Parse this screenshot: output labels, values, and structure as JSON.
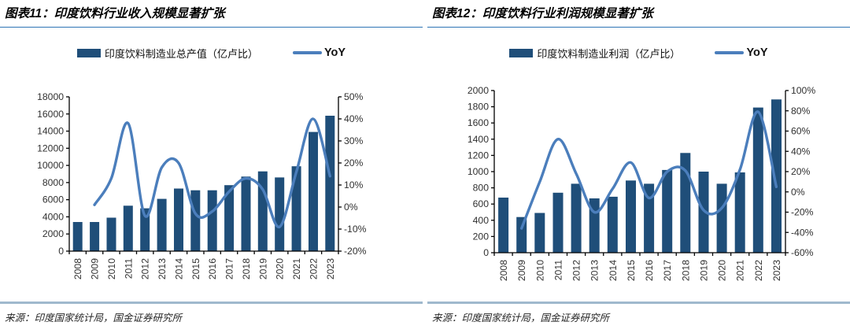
{
  "page": {
    "background": "#ffffff"
  },
  "colors": {
    "bar": "#1F4E79",
    "line": "#4B7EBC",
    "title_rule": "#2E74B5",
    "source_rule": "#9FB9CD",
    "axis": "#000000",
    "axis_text": "#303030"
  },
  "panels": [
    {
      "title": "图表11：印度饮料行业收入规模显著扩张",
      "legend": {
        "bar_label": "印度饮料制造业总产值（亿卢比）",
        "line_label": "YoY"
      },
      "source": "来源：印度国家统计局，国金证券研究所"
    },
    {
      "title": "图表12：印度饮料行业利润规模显著扩张",
      "legend": {
        "bar_label": "印度饮料制造业利润（亿卢比）",
        "line_label": "YoY"
      },
      "source": "来源：印度国家统计局，国金证券研究所"
    }
  ],
  "chart_data": [
    {
      "type": "bar",
      "title": "印度饮料行业收入规模显著扩张",
      "categories": [
        "2008",
        "2009",
        "2010",
        "2011",
        "2012",
        "2013",
        "2014",
        "2015",
        "2016",
        "2017",
        "2018",
        "2019",
        "2020",
        "2021",
        "2022",
        "2023"
      ],
      "series": [
        {
          "name": "印度饮料制造业总产值（亿卢比）",
          "type": "bar",
          "axis": "left",
          "values": [
            3400,
            3400,
            3900,
            5300,
            5000,
            6100,
            7300,
            7100,
            7100,
            7700,
            8700,
            9300,
            8600,
            9900,
            13900,
            15800
          ]
        },
        {
          "name": "YoY",
          "type": "line",
          "axis": "right",
          "values": [
            null,
            1,
            13,
            38,
            -4,
            18,
            20,
            -3,
            -2,
            7,
            13,
            8,
            -9,
            16,
            40,
            14
          ]
        }
      ],
      "left_axis": {
        "min": 0,
        "max": 18000,
        "step": 2000
      },
      "right_axis": {
        "min": -20,
        "max": 50,
        "step": 10,
        "suffix": "%"
      },
      "grid": false,
      "legend_position": "top"
    },
    {
      "type": "bar",
      "title": "印度饮料行业利润规模显著扩张",
      "categories": [
        "2008",
        "2009",
        "2010",
        "2011",
        "2012",
        "2013",
        "2014",
        "2015",
        "2016",
        "2017",
        "2018",
        "2019",
        "2020",
        "2021",
        "2022",
        "2023"
      ],
      "series": [
        {
          "name": "印度饮料制造业利润（亿卢比）",
          "type": "bar",
          "axis": "left",
          "values": [
            680,
            440,
            490,
            740,
            850,
            670,
            690,
            890,
            850,
            1020,
            1230,
            1000,
            850,
            990,
            1790,
            1890
          ]
        },
        {
          "name": "YoY",
          "type": "line",
          "axis": "right",
          "values": [
            null,
            -36,
            10,
            52,
            18,
            -20,
            3,
            29,
            -6,
            20,
            21,
            -18,
            -16,
            22,
            79,
            5
          ]
        }
      ],
      "left_axis": {
        "min": 0,
        "max": 2000,
        "step": 200
      },
      "right_axis": {
        "min": -60,
        "max": 100,
        "step": 20,
        "suffix": "%"
      },
      "grid": false,
      "legend_position": "top"
    }
  ]
}
